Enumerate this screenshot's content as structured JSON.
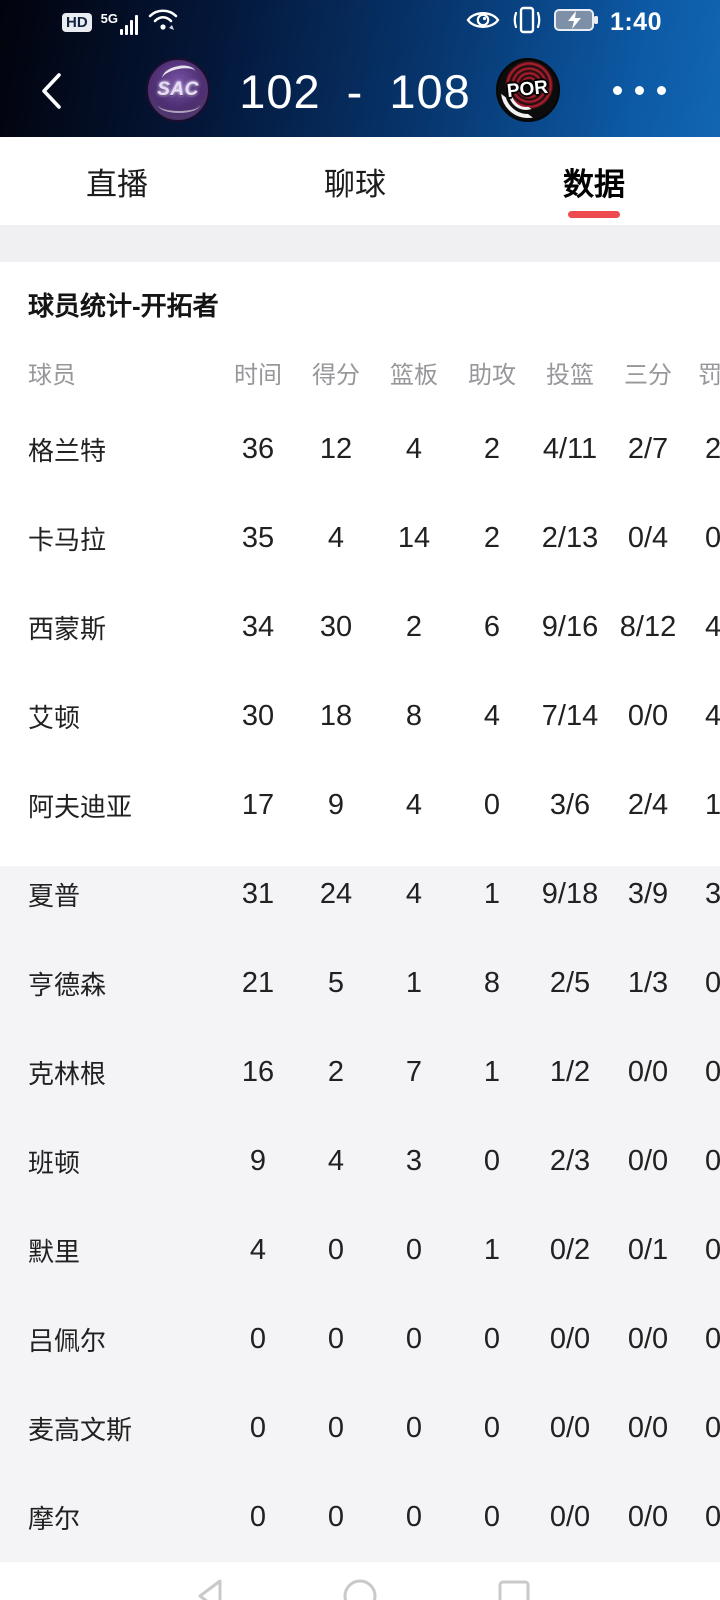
{
  "colors": {
    "accent_red": "#ee4b50",
    "header_blue": "#0d5aa6",
    "bench_bg": "#f4f4f6"
  },
  "status_bar": {
    "hd_badge": "HD",
    "network": "5G",
    "time": "1:40",
    "left_icons": [
      "hd-badge",
      "signal-bars",
      "wifi"
    ],
    "right_icons": [
      "eye-protection",
      "vibrate",
      "battery-charging"
    ]
  },
  "match_header": {
    "home": {
      "abbr": "SAC"
    },
    "away": {
      "abbr": "POR"
    },
    "home_score": "102",
    "separator": "-",
    "away_score": "108",
    "back_icon": "chevron-left",
    "menu_icon": "three-dots"
  },
  "tabs": [
    {
      "label": "直播",
      "active": false
    },
    {
      "label": "聊球",
      "active": false
    },
    {
      "label": "数据",
      "active": true
    }
  ],
  "stats_section": {
    "title": "球员统计-开拓者"
  },
  "player_table": {
    "columns": [
      "球员",
      "时间",
      "得分",
      "篮板",
      "助攻",
      "投篮",
      "三分",
      "罚球"
    ],
    "starters": [
      {
        "name": "格兰特",
        "min": "36",
        "pts": "12",
        "reb": "4",
        "ast": "2",
        "fg": "4/11",
        "three": "2/7",
        "ft_visible": "2"
      },
      {
        "name": "卡马拉",
        "min": "35",
        "pts": "4",
        "reb": "14",
        "ast": "2",
        "fg": "2/13",
        "three": "0/4",
        "ft_visible": "0"
      },
      {
        "name": "西蒙斯",
        "min": "34",
        "pts": "30",
        "reb": "2",
        "ast": "6",
        "fg": "9/16",
        "three": "8/12",
        "ft_visible": "4"
      },
      {
        "name": "艾顿",
        "min": "30",
        "pts": "18",
        "reb": "8",
        "ast": "4",
        "fg": "7/14",
        "three": "0/0",
        "ft_visible": "4"
      },
      {
        "name": "阿夫迪亚",
        "min": "17",
        "pts": "9",
        "reb": "4",
        "ast": "0",
        "fg": "3/6",
        "three": "2/4",
        "ft_visible": "1"
      }
    ],
    "bench": [
      {
        "name": "夏普",
        "min": "31",
        "pts": "24",
        "reb": "4",
        "ast": "1",
        "fg": "9/18",
        "three": "3/9",
        "ft_visible": "3"
      },
      {
        "name": "亨德森",
        "min": "21",
        "pts": "5",
        "reb": "1",
        "ast": "8",
        "fg": "2/5",
        "three": "1/3",
        "ft_visible": "0"
      },
      {
        "name": "克林根",
        "min": "16",
        "pts": "2",
        "reb": "7",
        "ast": "1",
        "fg": "1/2",
        "three": "0/0",
        "ft_visible": "0"
      },
      {
        "name": "班顿",
        "min": "9",
        "pts": "4",
        "reb": "3",
        "ast": "0",
        "fg": "2/3",
        "three": "0/0",
        "ft_visible": "0"
      },
      {
        "name": "默里",
        "min": "4",
        "pts": "0",
        "reb": "0",
        "ast": "1",
        "fg": "0/2",
        "three": "0/1",
        "ft_visible": "0"
      },
      {
        "name": "吕佩尔",
        "min": "0",
        "pts": "0",
        "reb": "0",
        "ast": "0",
        "fg": "0/0",
        "three": "0/0",
        "ft_visible": "0"
      },
      {
        "name": "麦高文斯",
        "min": "0",
        "pts": "0",
        "reb": "0",
        "ast": "0",
        "fg": "0/0",
        "three": "0/0",
        "ft_visible": "0"
      },
      {
        "name": "摩尔",
        "min": "0",
        "pts": "0",
        "reb": "0",
        "ast": "0",
        "fg": "0/0",
        "three": "0/0",
        "ft_visible": "0"
      }
    ]
  },
  "nav_bar": {
    "buttons": [
      "back",
      "home",
      "recents"
    ]
  }
}
